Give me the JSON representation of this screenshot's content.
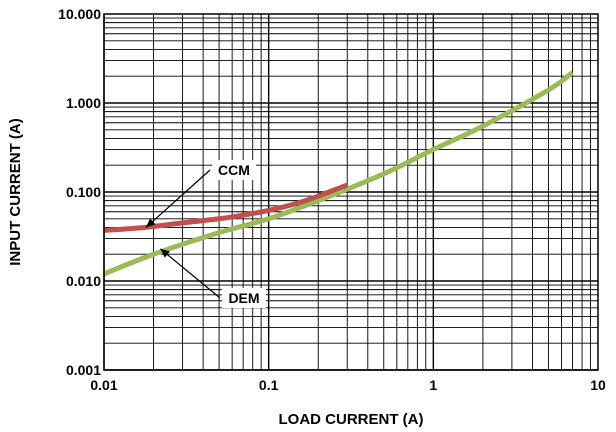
{
  "chart_data": {
    "type": "line",
    "xlabel": "LOAD CURRENT (A)",
    "ylabel": "INPUT CURRENT (A)",
    "xscale": "log",
    "yscale": "log",
    "xlim": [
      0.01,
      10
    ],
    "ylim": [
      0.001,
      10
    ],
    "grid": true,
    "x_tick_labels": [
      "0.01",
      "0.1",
      "1",
      "10"
    ],
    "y_tick_labels": [
      "0.001",
      "0.010",
      "0.100",
      "1.000",
      "10.000"
    ],
    "series": [
      {
        "name": "CCM",
        "color": "#c0504d",
        "x": [
          0.01,
          0.015,
          0.02,
          0.03,
          0.05,
          0.07,
          0.1,
          0.15,
          0.2,
          0.3
        ],
        "y": [
          0.037,
          0.039,
          0.041,
          0.045,
          0.05,
          0.055,
          0.062,
          0.075,
          0.09,
          0.12
        ]
      },
      {
        "name": "DEM",
        "color": "#9bbb59",
        "x": [
          0.01,
          0.02,
          0.05,
          0.1,
          0.2,
          0.5,
          1,
          2,
          5,
          7
        ],
        "y": [
          0.012,
          0.02,
          0.035,
          0.05,
          0.08,
          0.16,
          0.3,
          0.55,
          1.4,
          2.2
        ]
      }
    ],
    "annotations": [
      {
        "text": "CCM",
        "series": "CCM",
        "x": 0.018,
        "y": 0.04
      },
      {
        "text": "DEM",
        "series": "DEM",
        "x": 0.022,
        "y": 0.023
      }
    ]
  }
}
